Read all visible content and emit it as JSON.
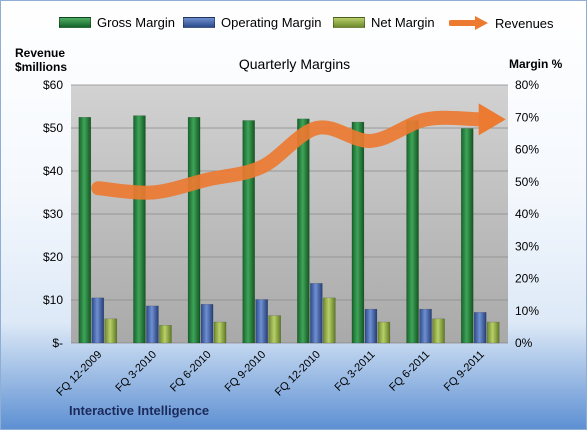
{
  "legend": {
    "gross": "Gross Margin",
    "operating": "Operating Margin",
    "net": "Net Margin",
    "revenues": "Revenues"
  },
  "axes": {
    "left_title_line1": "Revenue",
    "left_title_line2": "$millions",
    "right_title": "Margin %"
  },
  "footer": "Interactive Intelligence",
  "colors": {
    "gross": "#1e7f3a",
    "operating": "#3d62a8",
    "net": "#8ea845",
    "revenues": "#ec7a31",
    "plot_bg": "#c0c0c0"
  },
  "chart_data": {
    "type": "bar",
    "title": "Quarterly Margins",
    "categories": [
      "FQ 12-2009",
      "FQ 3-2010",
      "FQ 6-2010",
      "FQ 9-2010",
      "FQ 12-2010",
      "FQ 3-2011",
      "FQ 6-2011",
      "FQ 9-2011"
    ],
    "left_axis": {
      "ylim": [
        0,
        60
      ],
      "ticks": [
        "$-",
        "$10",
        "$20",
        "$30",
        "$40",
        "$50",
        "$60"
      ]
    },
    "right_axis": {
      "ylim": [
        0,
        80
      ],
      "ticks": [
        "0%",
        "10%",
        "20%",
        "30%",
        "40%",
        "50%",
        "60%",
        "70%",
        "80%"
      ]
    },
    "series": [
      {
        "name": "Gross Margin",
        "axis": "right",
        "values": [
          70,
          70.5,
          70,
          69,
          69.5,
          68.5,
          69,
          66.5
        ]
      },
      {
        "name": "Operating Margin",
        "axis": "right",
        "values": [
          14,
          11.5,
          12,
          13.5,
          18.5,
          10.5,
          10.5,
          9.5
        ]
      },
      {
        "name": "Net Margin",
        "axis": "right",
        "values": [
          7.5,
          5.5,
          6.5,
          8.5,
          14,
          6.5,
          7.5,
          6.5
        ]
      },
      {
        "name": "Revenues",
        "type": "line",
        "axis": "left",
        "values": [
          36,
          35,
          38,
          41,
          50,
          47,
          52,
          52
        ]
      }
    ],
    "grid": true,
    "legend_position": "top"
  }
}
